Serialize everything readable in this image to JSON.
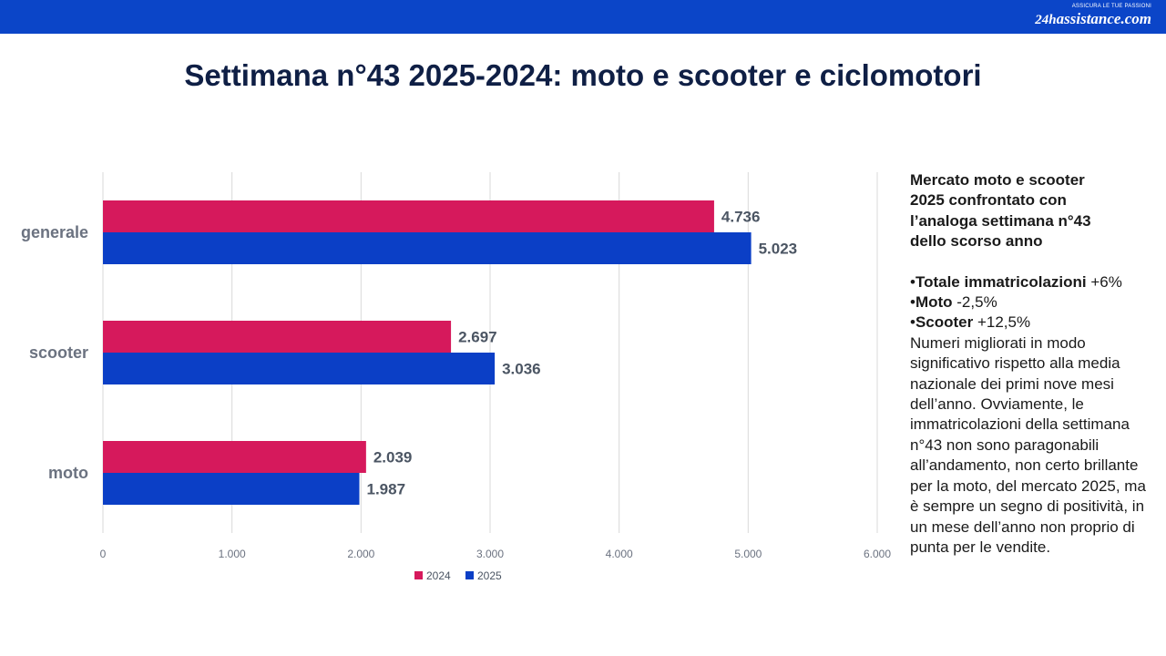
{
  "header": {
    "logo_tagline": "ASSICURA LE TUE PASSIONI",
    "logo_brand_num": "24h",
    "logo_brand": "assistance.com"
  },
  "title": "Settimana n°43 2025-2024: moto e scooter e ciclomotori",
  "colors": {
    "topbar": "#0b45c8",
    "series_2024": "#d6195c",
    "series_2025": "#0b3fc6"
  },
  "chart_data": {
    "type": "bar",
    "orientation": "horizontal",
    "categories": [
      "generale",
      "scooter",
      "moto"
    ],
    "series": [
      {
        "name": "2024",
        "values": [
          4736,
          2697,
          2039
        ],
        "labels": [
          "4.736",
          "2.697",
          "2.039"
        ],
        "color": "#d6195c"
      },
      {
        "name": "2025",
        "values": [
          5023,
          3036,
          1987
        ],
        "labels": [
          "5.023",
          "3.036",
          "1.987"
        ],
        "color": "#0b3fc6"
      }
    ],
    "xlim": [
      0,
      6000
    ],
    "x_ticks": [
      0,
      1000,
      2000,
      3000,
      4000,
      5000,
      6000
    ],
    "x_tick_labels": [
      "0",
      "1.000",
      "2.000",
      "3.000",
      "4.000",
      "5.000",
      "6.000"
    ],
    "grid": true,
    "legend": "bottom"
  },
  "side_text": {
    "heading": "Mercato moto e scooter\n2025 confrontato con\nl’analoga settimana n°43\ndello scorso anno",
    "bullets": [
      {
        "prefix": "•",
        "bold": "Totale immatricolazioni",
        "rest": " +6%"
      },
      {
        "prefix": "•",
        "bold": "Moto",
        "rest": " -2,5%"
      },
      {
        "prefix": "•",
        "bold": "Scooter",
        "rest": " +12,5%"
      }
    ],
    "paragraph": "Numeri migliorati in modo significativo rispetto alla media nazionale dei primi nove mesi dell’anno. Ovviamente, le immatricolazioni della settimana n°43 non sono paragonabili all’andamento, non certo brillante per la moto, del mercato 2025, ma è sempre un segno di positività, in un mese dell’anno non proprio di punta per le vendite."
  }
}
